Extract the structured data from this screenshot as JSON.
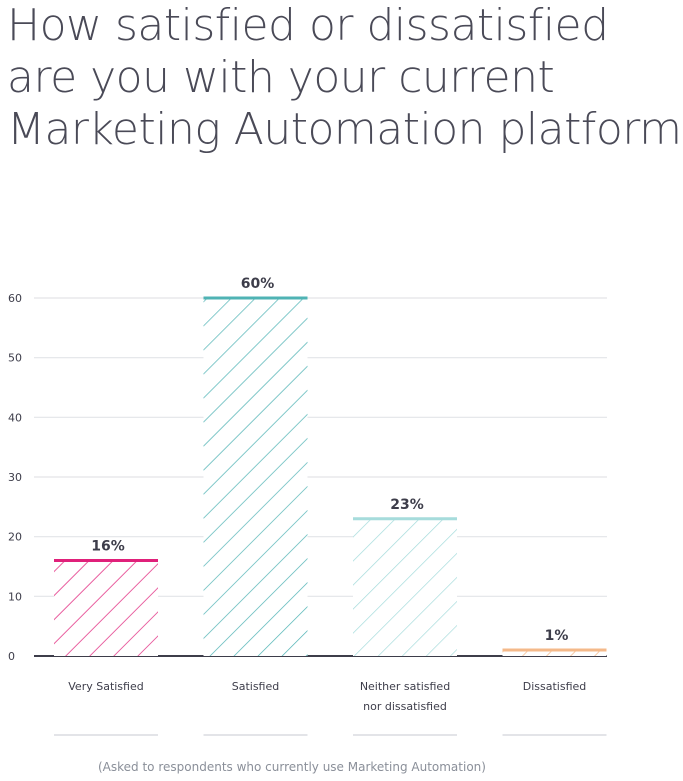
{
  "title_lines": [
    "How satisfied or dissatisfied",
    "are you with your current",
    "Marketing Automation platform?"
  ],
  "footnote": "(Asked to respondents who currently use Marketing Automation)",
  "chart_data": {
    "type": "bar",
    "categories": [
      "Very Satisfied",
      "Satisfied",
      "Neither satisfied nor dissatisfied",
      "Dissatisfied"
    ],
    "category_lines": [
      [
        "Very Satisfied"
      ],
      [
        "Satisfied"
      ],
      [
        "Neither satisfied",
        "nor dissatisfied"
      ],
      [
        "Dissatisfied"
      ]
    ],
    "values": [
      16,
      60,
      23,
      1
    ],
    "data_labels": [
      "16%",
      "60%",
      "23%",
      "1%"
    ],
    "colors": [
      "#e0207a",
      "#4fb3b4",
      "#a6dcdc",
      "#f4b98a"
    ],
    "yticks": [
      0,
      10,
      20,
      30,
      40,
      50,
      60
    ],
    "ylim": [
      0,
      60
    ],
    "grid": true,
    "title": "How satisfied or dissatisfied are you with your current Marketing Automation platform?",
    "xlabel": "",
    "ylabel": ""
  }
}
